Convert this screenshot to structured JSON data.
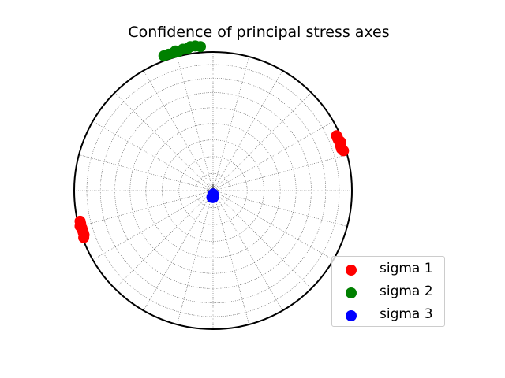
{
  "chart_data": {
    "type": "scatter",
    "projection": "stereonet",
    "title": "Confidence of principal stress axes",
    "grid": true,
    "legend_position": "lower-right",
    "series": [
      {
        "name": "sigma 1",
        "color": "#ff0000",
        "points": [
          {
            "trend": 73,
            "plunge": 2
          },
          {
            "trend": 72,
            "plunge": 3
          },
          {
            "trend": 71,
            "plunge": 3
          },
          {
            "trend": 70,
            "plunge": 3
          },
          {
            "trend": 69,
            "plunge": 2
          },
          {
            "trend": 68,
            "plunge": 3
          },
          {
            "trend": 67,
            "plunge": 3
          },
          {
            "trend": 66,
            "plunge": 3
          },
          {
            "trend": 250,
            "plunge": 1
          },
          {
            "trend": 251,
            "plunge": 2
          },
          {
            "trend": 252,
            "plunge": 2
          },
          {
            "trend": 253,
            "plunge": 2
          },
          {
            "trend": 254,
            "plunge": 2
          },
          {
            "trend": 255,
            "plunge": 1
          },
          {
            "trend": 256,
            "plunge": 2
          },
          {
            "trend": 257,
            "plunge": 2
          }
        ]
      },
      {
        "name": "sigma 2",
        "color": "#008000",
        "points": [
          {
            "trend": 340,
            "plunge": -4
          },
          {
            "trend": 342,
            "plunge": -4
          },
          {
            "trend": 344,
            "plunge": -4
          },
          {
            "trend": 345,
            "plunge": -5
          },
          {
            "trend": 346,
            "plunge": -4
          },
          {
            "trend": 348,
            "plunge": -5
          },
          {
            "trend": 350,
            "plunge": -5
          },
          {
            "trend": 351,
            "plunge": -6
          },
          {
            "trend": 353,
            "plunge": -6
          },
          {
            "trend": 355,
            "plunge": -5
          }
        ]
      },
      {
        "name": "sigma 3",
        "color": "#0000ff",
        "points": [
          {
            "trend": 172,
            "plunge": 87
          },
          {
            "trend": 175,
            "plunge": 87
          },
          {
            "trend": 178,
            "plunge": 86
          },
          {
            "trend": 180,
            "plunge": 87
          },
          {
            "trend": 183,
            "plunge": 86
          },
          {
            "trend": 186,
            "plunge": 87
          },
          {
            "trend": 190,
            "plunge": 86
          },
          {
            "trend": 178,
            "plunge": 88
          }
        ]
      }
    ]
  }
}
